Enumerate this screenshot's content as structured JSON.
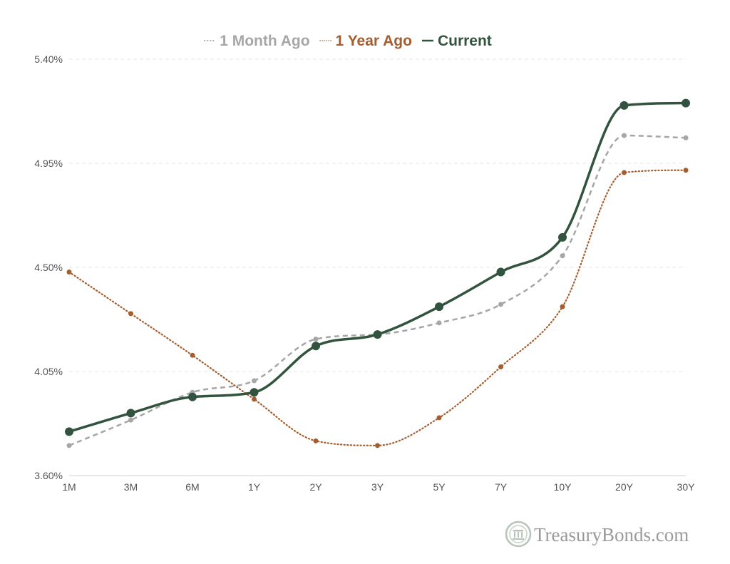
{
  "chart_data": {
    "type": "line",
    "title": "",
    "xlabel": "",
    "ylabel": "",
    "categories": [
      "1M",
      "3M",
      "6M",
      "1Y",
      "2Y",
      "3Y",
      "5Y",
      "7Y",
      "10Y",
      "20Y",
      "30Y"
    ],
    "ylim": [
      3.6,
      5.4
    ],
    "y_ticks": [
      3.6,
      4.05,
      4.5,
      4.95,
      5.4
    ],
    "y_tick_labels": [
      "3.60%",
      "4.05%",
      "4.50%",
      "4.95%",
      "5.40%"
    ],
    "grid": "horizontal dashed",
    "legend_position": "top-center",
    "series": [
      {
        "name": "1 Month Ago",
        "style": "dashed",
        "color": "#a6a6a6",
        "values": [
          3.73,
          3.84,
          3.96,
          4.01,
          4.19,
          4.21,
          4.26,
          4.34,
          4.55,
          5.07,
          5.06
        ]
      },
      {
        "name": "1 Year Ago",
        "style": "dotted",
        "color": "#a65d2e",
        "values": [
          4.48,
          4.3,
          4.12,
          3.93,
          3.75,
          3.73,
          3.85,
          4.07,
          4.33,
          4.91,
          4.92
        ]
      },
      {
        "name": "Current",
        "style": "solid",
        "color": "#32533d",
        "values": [
          3.79,
          3.87,
          3.94,
          3.96,
          4.16,
          4.21,
          4.33,
          4.48,
          4.63,
          5.2,
          5.21
        ]
      }
    ]
  },
  "branding": {
    "logo_text": "TreasuryBonds.com",
    "logo_icon": "treasury-seal-icon"
  }
}
